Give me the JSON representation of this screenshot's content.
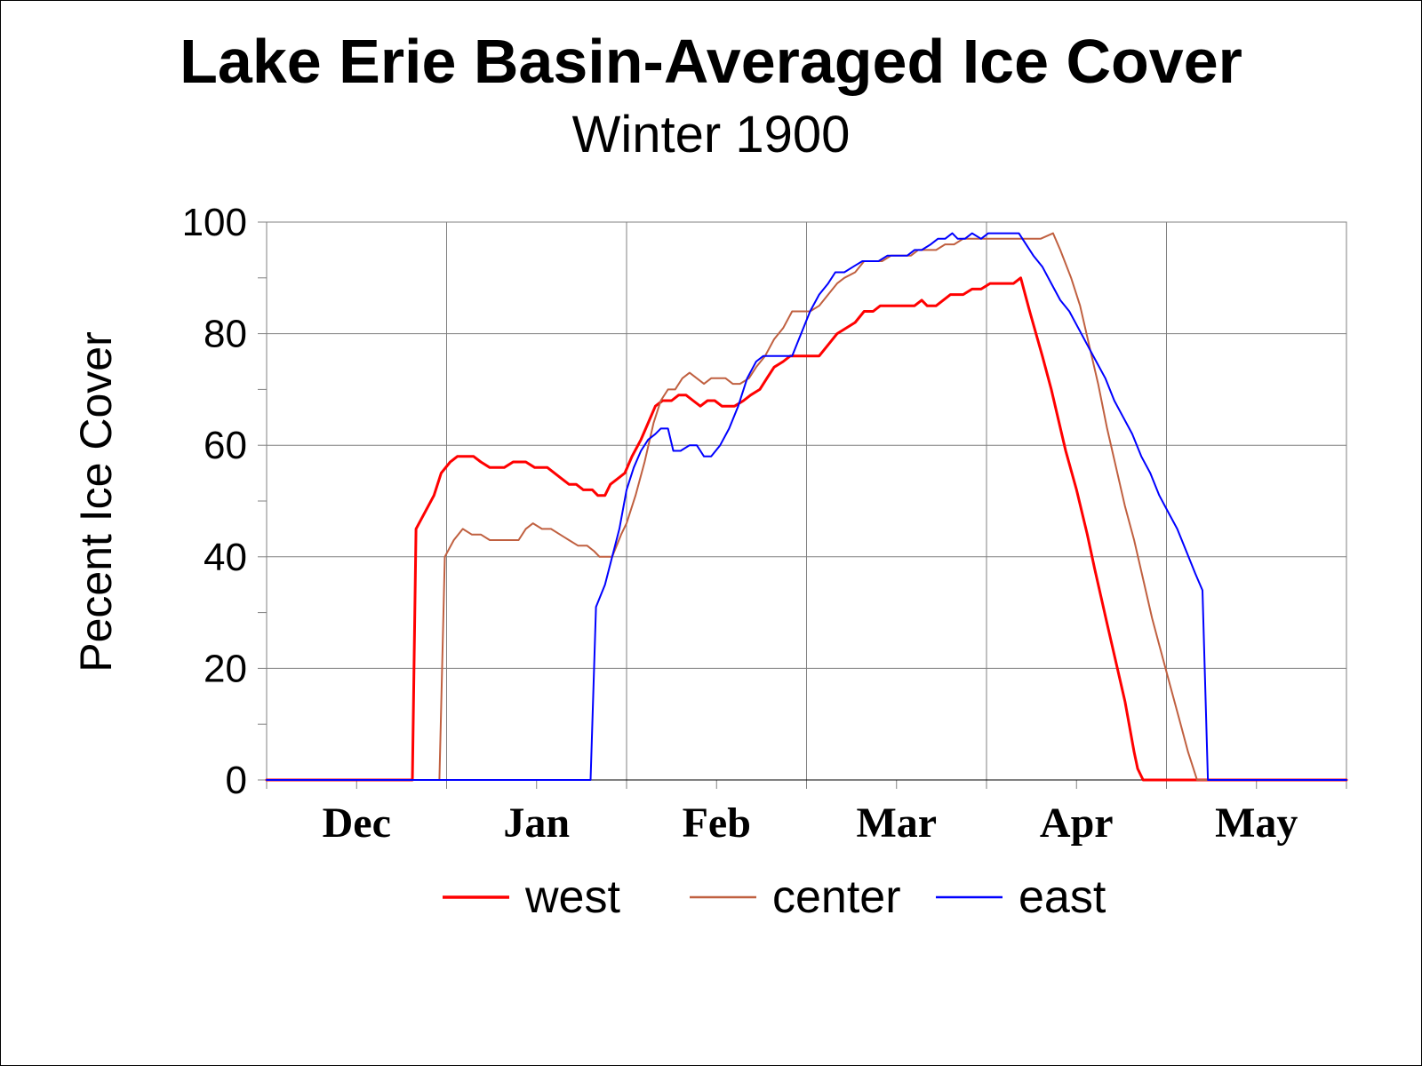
{
  "chart_data": {
    "type": "line",
    "title": "Lake Erie Basin-Averaged Ice Cover",
    "subtitle": "Winter 1900",
    "xlabel": "",
    "ylabel": "Pecent Ice Cover",
    "ylim": [
      0,
      100
    ],
    "yticks": [
      "0",
      "20",
      "40",
      "60",
      "80",
      "100"
    ],
    "x_unit": "months from 1 Dec 1899 (tick labels centered mid-month)",
    "xlim": [
      0,
      6
    ],
    "xticks": [
      "Dec",
      "Jan",
      "Feb",
      "Mar",
      "Apr",
      "May"
    ],
    "grid": true,
    "legend_position": "bottom",
    "series": [
      {
        "name": "west",
        "color": "#ff0000",
        "width": 3,
        "points": [
          [
            0,
            0
          ],
          [
            0.81,
            0
          ],
          [
            0.83,
            45
          ],
          [
            0.88,
            48
          ],
          [
            0.93,
            51
          ],
          [
            0.97,
            55
          ],
          [
            1.02,
            57
          ],
          [
            1.06,
            58
          ],
          [
            1.15,
            58
          ],
          [
            1.19,
            57
          ],
          [
            1.24,
            56
          ],
          [
            1.32,
            56
          ],
          [
            1.37,
            57
          ],
          [
            1.44,
            57
          ],
          [
            1.49,
            56
          ],
          [
            1.56,
            56
          ],
          [
            1.64,
            54
          ],
          [
            1.68,
            53
          ],
          [
            1.72,
            53
          ],
          [
            1.76,
            52
          ],
          [
            1.81,
            52
          ],
          [
            1.84,
            51
          ],
          [
            1.88,
            51
          ],
          [
            1.91,
            53
          ],
          [
            1.95,
            54
          ],
          [
            1.99,
            55
          ],
          [
            2.03,
            58
          ],
          [
            2.08,
            61
          ],
          [
            2.12,
            64
          ],
          [
            2.16,
            67
          ],
          [
            2.2,
            68
          ],
          [
            2.25,
            68
          ],
          [
            2.29,
            69
          ],
          [
            2.33,
            69
          ],
          [
            2.37,
            68
          ],
          [
            2.41,
            67
          ],
          [
            2.45,
            68
          ],
          [
            2.49,
            68
          ],
          [
            2.53,
            67
          ],
          [
            2.6,
            67
          ],
          [
            2.65,
            68
          ],
          [
            2.69,
            69
          ],
          [
            2.74,
            70
          ],
          [
            2.78,
            72
          ],
          [
            2.82,
            74
          ],
          [
            2.87,
            75
          ],
          [
            2.91,
            76
          ],
          [
            3.07,
            76
          ],
          [
            3.12,
            78
          ],
          [
            3.17,
            80
          ],
          [
            3.27,
            82
          ],
          [
            3.32,
            84
          ],
          [
            3.37,
            84
          ],
          [
            3.41,
            85
          ],
          [
            3.52,
            85
          ],
          [
            3.6,
            85
          ],
          [
            3.64,
            86
          ],
          [
            3.67,
            85
          ],
          [
            3.72,
            85
          ],
          [
            3.8,
            87
          ],
          [
            3.87,
            87
          ],
          [
            3.92,
            88
          ],
          [
            3.97,
            88
          ],
          [
            4.02,
            89
          ],
          [
            4.1,
            89
          ],
          [
            4.15,
            89
          ],
          [
            4.19,
            90
          ],
          [
            4.24,
            84
          ],
          [
            4.31,
            76
          ],
          [
            4.36,
            70
          ],
          [
            4.44,
            59
          ],
          [
            4.5,
            52
          ],
          [
            4.56,
            44
          ],
          [
            4.6,
            38
          ],
          [
            4.67,
            28
          ],
          [
            4.72,
            21
          ],
          [
            4.77,
            14
          ],
          [
            4.82,
            5
          ],
          [
            4.84,
            2
          ],
          [
            4.87,
            0
          ],
          [
            6,
            0
          ]
        ]
      },
      {
        "name": "center",
        "color": "#c06040",
        "width": 2,
        "points": [
          [
            0,
            0
          ],
          [
            0.96,
            0
          ],
          [
            0.99,
            40
          ],
          [
            1.04,
            43
          ],
          [
            1.09,
            45
          ],
          [
            1.14,
            44
          ],
          [
            1.19,
            44
          ],
          [
            1.24,
            43
          ],
          [
            1.36,
            43
          ],
          [
            1.4,
            43
          ],
          [
            1.44,
            45
          ],
          [
            1.48,
            46
          ],
          [
            1.53,
            45
          ],
          [
            1.58,
            45
          ],
          [
            1.63,
            44
          ],
          [
            1.68,
            43
          ],
          [
            1.73,
            42
          ],
          [
            1.78,
            42
          ],
          [
            1.82,
            41
          ],
          [
            1.85,
            40
          ],
          [
            1.92,
            40
          ],
          [
            1.97,
            44
          ],
          [
            2.0,
            46
          ],
          [
            2.05,
            51
          ],
          [
            2.1,
            57
          ],
          [
            2.15,
            64
          ],
          [
            2.19,
            68
          ],
          [
            2.23,
            70
          ],
          [
            2.27,
            70
          ],
          [
            2.31,
            72
          ],
          [
            2.35,
            73
          ],
          [
            2.39,
            72
          ],
          [
            2.43,
            71
          ],
          [
            2.47,
            72
          ],
          [
            2.55,
            72
          ],
          [
            2.59,
            71
          ],
          [
            2.63,
            71
          ],
          [
            2.68,
            72
          ],
          [
            2.72,
            74
          ],
          [
            2.77,
            76
          ],
          [
            2.82,
            79
          ],
          [
            2.87,
            81
          ],
          [
            2.92,
            84
          ],
          [
            3.02,
            84
          ],
          [
            3.07,
            85
          ],
          [
            3.12,
            87
          ],
          [
            3.17,
            89
          ],
          [
            3.21,
            90
          ],
          [
            3.27,
            91
          ],
          [
            3.32,
            93
          ],
          [
            3.37,
            93
          ],
          [
            3.42,
            93
          ],
          [
            3.47,
            94
          ],
          [
            3.58,
            94
          ],
          [
            3.62,
            95
          ],
          [
            3.72,
            95
          ],
          [
            3.77,
            96
          ],
          [
            3.82,
            96
          ],
          [
            3.87,
            97
          ],
          [
            4.02,
            97
          ],
          [
            4.1,
            97
          ],
          [
            4.2,
            97
          ],
          [
            4.24,
            97
          ],
          [
            4.3,
            97
          ],
          [
            4.37,
            98
          ],
          [
            4.41,
            95
          ],
          [
            4.47,
            90
          ],
          [
            4.52,
            85
          ],
          [
            4.57,
            78
          ],
          [
            4.62,
            71
          ],
          [
            4.67,
            63
          ],
          [
            4.72,
            56
          ],
          [
            4.77,
            49
          ],
          [
            4.82,
            43
          ],
          [
            4.87,
            36
          ],
          [
            4.92,
            29
          ],
          [
            4.97,
            23
          ],
          [
            5.02,
            17
          ],
          [
            5.07,
            11
          ],
          [
            5.12,
            5
          ],
          [
            5.15,
            2
          ],
          [
            5.17,
            0
          ],
          [
            6,
            0
          ]
        ]
      },
      {
        "name": "east",
        "color": "#0000ff",
        "width": 2,
        "points": [
          [
            0,
            0
          ],
          [
            1.8,
            0
          ],
          [
            1.83,
            31
          ],
          [
            1.88,
            35
          ],
          [
            1.92,
            40
          ],
          [
            1.96,
            45
          ],
          [
            2.0,
            52
          ],
          [
            2.04,
            56
          ],
          [
            2.08,
            59
          ],
          [
            2.12,
            61
          ],
          [
            2.16,
            62
          ],
          [
            2.19,
            63
          ],
          [
            2.23,
            63
          ],
          [
            2.26,
            59
          ],
          [
            2.3,
            59
          ],
          [
            2.35,
            60
          ],
          [
            2.39,
            60
          ],
          [
            2.43,
            58
          ],
          [
            2.47,
            58
          ],
          [
            2.52,
            60
          ],
          [
            2.57,
            63
          ],
          [
            2.62,
            67
          ],
          [
            2.67,
            72
          ],
          [
            2.72,
            75
          ],
          [
            2.76,
            76
          ],
          [
            2.92,
            76
          ],
          [
            2.97,
            80
          ],
          [
            3.02,
            84
          ],
          [
            3.07,
            87
          ],
          [
            3.12,
            89
          ],
          [
            3.16,
            91
          ],
          [
            3.21,
            91
          ],
          [
            3.26,
            92
          ],
          [
            3.31,
            93
          ],
          [
            3.4,
            93
          ],
          [
            3.45,
            94
          ],
          [
            3.56,
            94
          ],
          [
            3.6,
            95
          ],
          [
            3.64,
            95
          ],
          [
            3.69,
            96
          ],
          [
            3.73,
            97
          ],
          [
            3.77,
            97
          ],
          [
            3.81,
            98
          ],
          [
            3.84,
            97
          ],
          [
            3.88,
            97
          ],
          [
            3.92,
            98
          ],
          [
            3.97,
            97
          ],
          [
            4.01,
            98
          ],
          [
            4.06,
            98
          ],
          [
            4.1,
            98
          ],
          [
            4.14,
            98
          ],
          [
            4.18,
            98
          ],
          [
            4.22,
            96
          ],
          [
            4.26,
            94
          ],
          [
            4.31,
            92
          ],
          [
            4.36,
            89
          ],
          [
            4.41,
            86
          ],
          [
            4.46,
            84
          ],
          [
            4.51,
            81
          ],
          [
            4.56,
            78
          ],
          [
            4.61,
            75
          ],
          [
            4.66,
            72
          ],
          [
            4.71,
            68
          ],
          [
            4.76,
            65
          ],
          [
            4.81,
            62
          ],
          [
            4.86,
            58
          ],
          [
            4.91,
            55
          ],
          [
            4.96,
            51
          ],
          [
            5.01,
            48
          ],
          [
            5.06,
            45
          ],
          [
            5.11,
            41
          ],
          [
            5.16,
            37
          ],
          [
            5.2,
            34
          ],
          [
            5.23,
            0
          ],
          [
            6,
            0
          ]
        ]
      }
    ]
  }
}
